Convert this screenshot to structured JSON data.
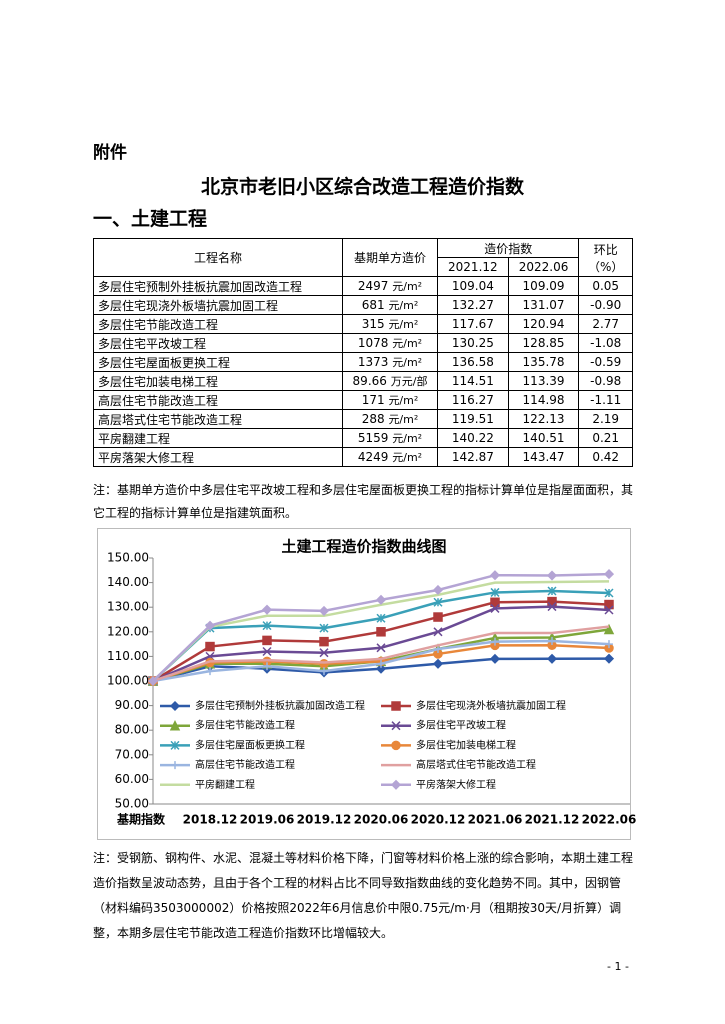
{
  "header": {
    "attachment": "附件",
    "title": "北京市老旧小区综合改造工程造价指数",
    "section": "一、土建工程"
  },
  "table": {
    "columns": {
      "name": "工程名称",
      "base": "基期单方造价",
      "index": "造价指数",
      "p1": "2021.12",
      "p2": "2022.06",
      "ratio": "环比",
      "ratio_unit": "（%）"
    },
    "rows": [
      [
        "多层住宅预制外挂板抗震加固改造工程",
        "2497",
        "元/m²",
        "109.04",
        "109.09",
        "0.05"
      ],
      [
        "多层住宅现浇外板墙抗震加固工程",
        "681",
        "元/m²",
        "132.27",
        "131.07",
        "-0.90"
      ],
      [
        "多层住宅节能改造工程",
        "315",
        "元/m²",
        "117.67",
        "120.94",
        "2.77"
      ],
      [
        "多层住宅平改坡工程",
        "1078",
        "元/m²",
        "130.25",
        "128.85",
        "-1.08"
      ],
      [
        "多层住宅屋面板更换工程",
        "1373",
        "元/m²",
        "136.58",
        "135.78",
        "-0.59"
      ],
      [
        "多层住宅加装电梯工程",
        "89.66",
        "万元/部",
        "114.51",
        "113.39",
        "-0.98"
      ],
      [
        "高层住宅节能改造工程",
        "171",
        "元/m²",
        "116.27",
        "114.98",
        "-1.11"
      ],
      [
        "高层塔式住宅节能改造工程",
        "288",
        "元/m²",
        "119.51",
        "122.13",
        "2.19"
      ],
      [
        "平房翻建工程",
        "5159",
        "元/m²",
        "140.22",
        "140.51",
        "0.21"
      ],
      [
        "平房落架大修工程",
        "4249",
        "元/m²",
        "142.87",
        "143.47",
        "0.42"
      ]
    ]
  },
  "note1": "注：基期单方造价中多层住宅平改坡工程和多层住宅屋面板更换工程的指标计算单位是指屋面面积，其它工程的指标计算单位是指建筑面积。",
  "chart_data": {
    "type": "line",
    "title": "土建工程造价指数曲线图",
    "categories": [
      "基期指数",
      "2018.12",
      "2019.06",
      "2019.12",
      "2020.06",
      "2020.12",
      "2021.06",
      "2021.12",
      "2022.06"
    ],
    "ylim": [
      50,
      150
    ],
    "yticks": [
      {
        "value": 50,
        "label": "50.00"
      },
      {
        "value": 60,
        "label": "60.00"
      },
      {
        "value": 70,
        "label": "70.00"
      },
      {
        "value": 80,
        "label": "80.00"
      },
      {
        "value": 90,
        "label": "90.00"
      },
      {
        "value": 100,
        "label": "100.00"
      },
      {
        "value": 110,
        "label": "110.00"
      },
      {
        "value": 120,
        "label": "120.00"
      },
      {
        "value": 130,
        "label": "130.00"
      },
      {
        "value": 140,
        "label": "140.00"
      },
      {
        "value": 150,
        "label": "150.00"
      }
    ],
    "grid": false,
    "series": [
      {
        "name": "多层住宅预制外挂板抗震加固改造工程",
        "color": "#2e5aa8",
        "marker": "diamond",
        "values": [
          100,
          106,
          105,
          103.5,
          105,
          107,
          109,
          109.04,
          109.09
        ]
      },
      {
        "name": "多层住宅现浇外板墙抗震加固工程",
        "color": "#b03a3a",
        "marker": "square",
        "values": [
          100,
          114,
          116.5,
          116,
          120,
          126,
          132,
          132.27,
          131.07
        ]
      },
      {
        "name": "多层住宅节能改造工程",
        "color": "#7ea63a",
        "marker": "triangle",
        "values": [
          100,
          107,
          107,
          106,
          108,
          113,
          117.5,
          117.67,
          120.94
        ]
      },
      {
        "name": "多层住宅平改坡工程",
        "color": "#6a4a94",
        "marker": "x",
        "values": [
          100,
          110,
          112,
          111.5,
          113.5,
          120,
          129.5,
          130.25,
          128.85
        ]
      },
      {
        "name": "多层住宅屋面板更换工程",
        "color": "#3aa0b8",
        "marker": "asterisk",
        "values": [
          100,
          121.5,
          122.5,
          121.5,
          125.5,
          132,
          136,
          136.58,
          135.78
        ]
      },
      {
        "name": "多层住宅加装电梯工程",
        "color": "#e8873a",
        "marker": "circle",
        "values": [
          100,
          107.5,
          108,
          107,
          108,
          111,
          114.5,
          114.51,
          113.39
        ]
      },
      {
        "name": "高层住宅节能改造工程",
        "color": "#9ab5e0",
        "marker": "plus",
        "values": [
          100,
          104,
          106,
          104,
          107,
          113,
          116,
          116.27,
          114.98
        ]
      },
      {
        "name": "高层塔式住宅节能改造工程",
        "color": "#e0a0a0",
        "marker": "none",
        "values": [
          100,
          108,
          108.5,
          107.5,
          109,
          114.5,
          119.5,
          119.51,
          122.13
        ]
      },
      {
        "name": "平房翻建工程",
        "color": "#c4dca0",
        "marker": "none",
        "values": [
          100,
          122,
          126.5,
          126.5,
          131,
          135,
          140,
          140.22,
          140.51
        ]
      },
      {
        "name": "平房落架大修工程",
        "color": "#b4a4d4",
        "marker": "diamond",
        "values": [
          100,
          122.5,
          129,
          128.5,
          133,
          137,
          143,
          142.87,
          143.47
        ]
      }
    ]
  },
  "note2": "注：受钢筋、钢构件、水泥、混凝土等材料价格下降，门窗等材料价格上涨的综合影响，本期土建工程造价指数呈波动态势，且由于各个工程的材料占比不同导致指数曲线的变化趋势不同。其中，因钢管（材料编码3503000002）价格按照2022年6月信息价中限0.75元/m·月（租期按30天/月折算）调整，本期多层住宅节能改造工程造价指数环比增幅较大。",
  "page_number": "- 1 -"
}
